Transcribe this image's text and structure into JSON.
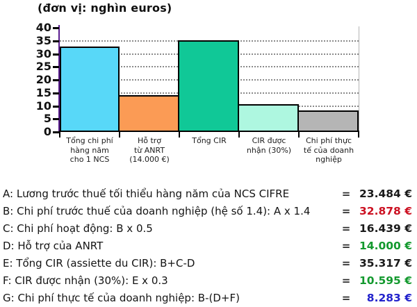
{
  "chart_data": {
    "type": "bar",
    "title": "(đơn vị: nghìn euros)",
    "categories": [
      [
        "Tổng chi phí",
        "hàng năm",
        "cho 1 NCS"
      ],
      [
        "Hỗ trợ",
        "từ ANRT",
        "(14.000 €)"
      ],
      [
        "Tổng CIR"
      ],
      [
        "CIR được",
        "nhận (30%)"
      ],
      [
        "Chi phí thực",
        "tế của doanh",
        "nghiệp"
      ]
    ],
    "values": [
      32.878,
      14.0,
      35.317,
      10.595,
      8.283
    ],
    "bar_colors": [
      "#58d8f8",
      "#fb9b55",
      "#10c897",
      "#aef7e0",
      "#b5b5b5"
    ],
    "bar_border_color": "#000000",
    "ylim": [
      0,
      40
    ],
    "ytick_step": 5,
    "grid": "horizontal-dotted",
    "axis_color": "#5a1d8f",
    "legend_position": "none",
    "xlabel": "",
    "ylabel": ""
  },
  "legend_rows": [
    {
      "label": "A: Lương trước thuế tối thiểu hàng năm của NCS CIFRE",
      "equals": "=",
      "value": "23.484 €",
      "color": "#1a1a1a"
    },
    {
      "label": "B: Chi phí trước thuế của doanh nghiệp (hệ số 1.4): A x 1.4",
      "equals": "=",
      "value": "32.878 €",
      "color": "#cc1122"
    },
    {
      "label": "C: Chi phí hoạt động: B x 0.5",
      "equals": "=",
      "value": "16.439 €",
      "color": "#1a1a1a"
    },
    {
      "label": "D: Hỗ trợ của ANRT",
      "equals": "=",
      "value": "14.000 €",
      "color": "#13992e"
    },
    {
      "label": "E: Tổng CIR (assiette du CIR): B+C-D",
      "equals": "=",
      "value": "35.317 €",
      "color": "#1a1a1a"
    },
    {
      "label": "F: CIR được nhận (30%): E x 0.3",
      "equals": "=",
      "value": "10.595 €",
      "color": "#13992e"
    },
    {
      "label": "G: Chi phí thực tế của doanh nghiệp: B-(D+F)",
      "equals": "=",
      "value": "8.283 €",
      "color": "#2222cc"
    }
  ]
}
